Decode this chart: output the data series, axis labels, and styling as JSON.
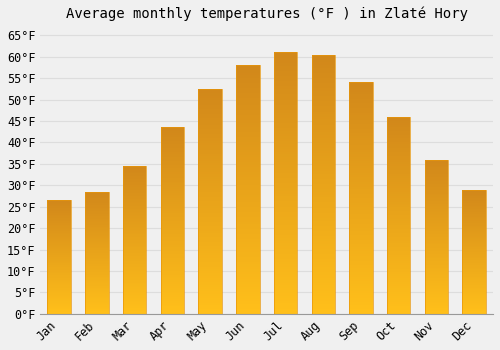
{
  "title": "Average monthly temperatures (°F ) in Zlaté Hory",
  "months": [
    "Jan",
    "Feb",
    "Mar",
    "Apr",
    "May",
    "Jun",
    "Jul",
    "Aug",
    "Sep",
    "Oct",
    "Nov",
    "Dec"
  ],
  "values": [
    26.5,
    28.5,
    34.5,
    43.5,
    52.5,
    58.0,
    61.0,
    60.5,
    54.0,
    46.0,
    36.0,
    29.0
  ],
  "bar_color_top": "#FFA500",
  "bar_color_bottom": "#FFD060",
  "bar_edge_color": "#E8960A",
  "background_color": "#F0F0F0",
  "grid_color": "#DDDDDD",
  "ylim": [
    0,
    67
  ],
  "yticks": [
    0,
    5,
    10,
    15,
    20,
    25,
    30,
    35,
    40,
    45,
    50,
    55,
    60,
    65
  ],
  "title_fontsize": 10,
  "tick_fontsize": 8.5,
  "bar_width": 0.62
}
